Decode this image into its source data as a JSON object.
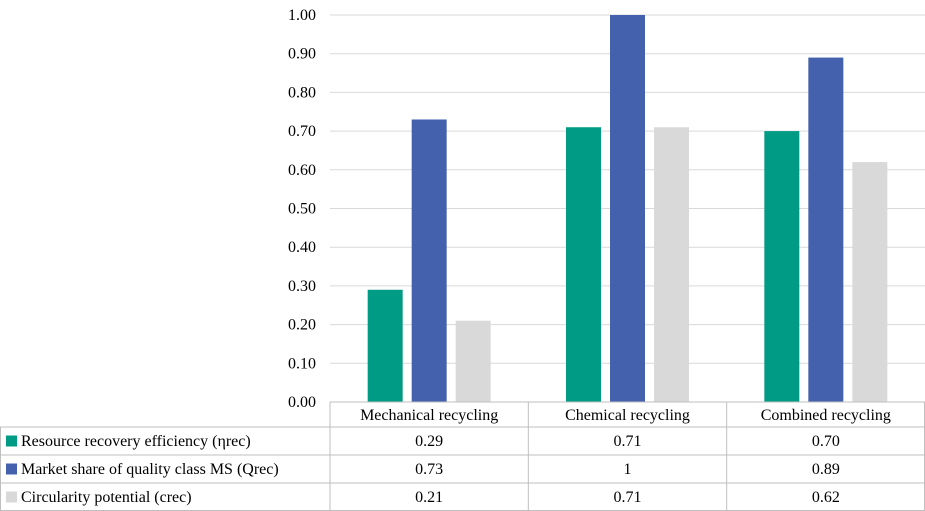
{
  "chart_data": {
    "type": "bar",
    "categories": [
      "Mechanical recycling",
      "Chemical recycling",
      "Combined recycling"
    ],
    "series": [
      {
        "name": "Resource recovery efficiency (ηrec)",
        "values": [
          0.29,
          0.71,
          0.7
        ],
        "color": "#009B84",
        "table_values": [
          "0.29",
          "0.71",
          "0.70"
        ]
      },
      {
        "name": "Market share of quality class MS (Qrec)",
        "values": [
          0.73,
          1,
          0.89
        ],
        "color": "#4361AD",
        "table_values": [
          "0.73",
          "1",
          "0.89"
        ]
      },
      {
        "name": "Circularity potential (crec)",
        "values": [
          0.21,
          0.71,
          0.62
        ],
        "color": "#D9D9D9",
        "table_values": [
          "0.21",
          "0.71",
          "0.62"
        ]
      }
    ],
    "ylim": [
      0,
      1.0
    ],
    "yticks": [
      "0.00",
      "0.10",
      "0.20",
      "0.30",
      "0.40",
      "0.50",
      "0.60",
      "0.70",
      "0.80",
      "0.90",
      "1.00"
    ],
    "grid": true,
    "legend": "data-table-below",
    "title": "",
    "xlabel": "",
    "ylabel": ""
  }
}
